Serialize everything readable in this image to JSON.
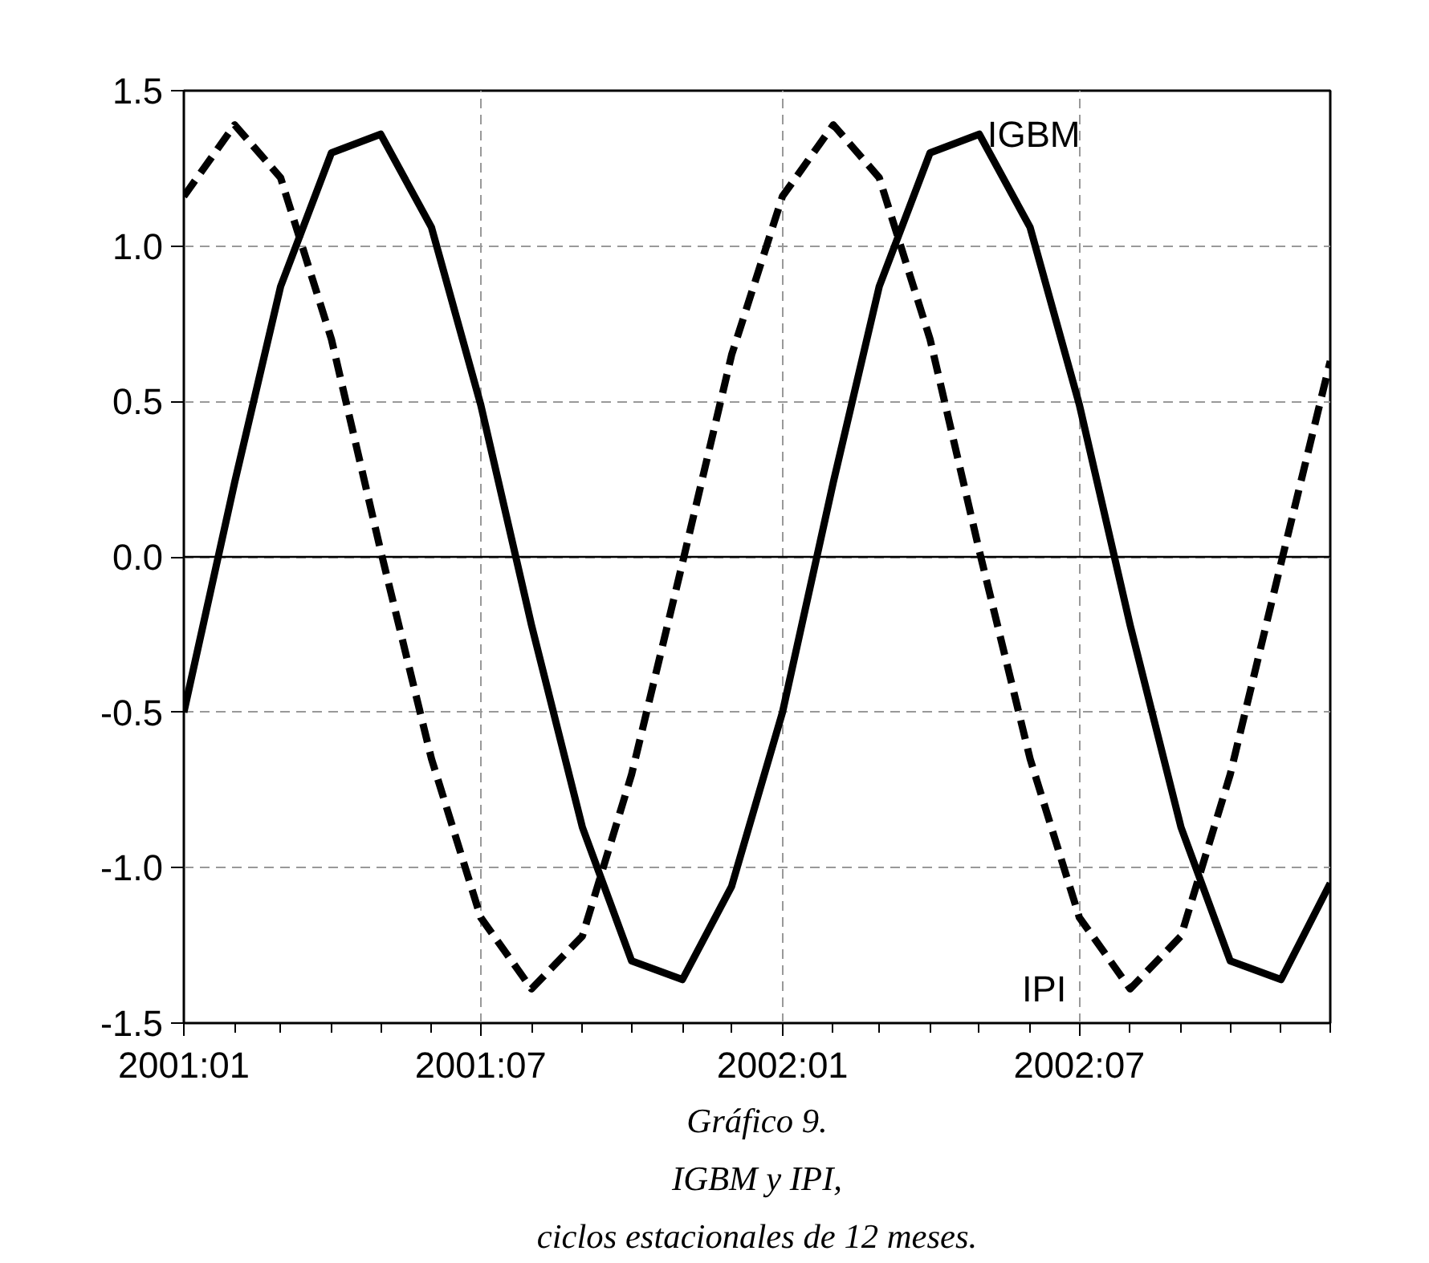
{
  "chart_data": {
    "type": "line",
    "x": [
      "2001-01",
      "2001-02",
      "2001-03",
      "2001-04",
      "2001-05",
      "2001-06",
      "2001-07",
      "2001-08",
      "2001-09",
      "2001-10",
      "2001-11",
      "2001-12",
      "2002-01",
      "2002-02",
      "2002-03",
      "2002-04",
      "2002-05",
      "2002-06",
      "2002-07",
      "2002-08",
      "2002-09",
      "2002-10",
      "2002-11",
      "2002-12"
    ],
    "series": [
      {
        "name": "IGBM",
        "color": "#000000",
        "line_style": "solid",
        "values": [
          -0.5,
          0.24,
          0.87,
          1.3,
          1.36,
          1.06,
          0.49,
          -0.22,
          -0.87,
          -1.3,
          -1.36,
          -1.06,
          -0.5,
          0.24,
          0.87,
          1.3,
          1.36,
          1.06,
          0.49,
          -0.22,
          -0.87,
          -1.3,
          -1.36,
          -1.05
        ]
      },
      {
        "name": "IPI",
        "color": "#000000",
        "line_style": "dashed",
        "values": [
          1.16,
          1.39,
          1.22,
          0.7,
          0.02,
          -0.65,
          -1.16,
          -1.39,
          -1.22,
          -0.7,
          -0.02,
          0.65,
          1.16,
          1.39,
          1.22,
          0.7,
          0.02,
          -0.65,
          -1.16,
          -1.39,
          -1.22,
          -0.7,
          -0.02,
          0.63
        ]
      }
    ],
    "xlim": [
      "2001-01",
      "2002-12"
    ],
    "xticks": [
      {
        "value": "2001-01",
        "label": "2001:01"
      },
      {
        "value": "2001-07",
        "label": "2001:07"
      },
      {
        "value": "2002-01",
        "label": "2002:01"
      },
      {
        "value": "2002-07",
        "label": "2002:07"
      }
    ],
    "ylim": [
      -1.5,
      1.5
    ],
    "yticks": [
      {
        "value": -1.5,
        "label": "-1.5"
      },
      {
        "value": -1.0,
        "label": "-1.0"
      },
      {
        "value": -0.5,
        "label": "-0.5"
      },
      {
        "value": 0.0,
        "label": "0.0"
      },
      {
        "value": 0.5,
        "label": "0.5"
      },
      {
        "value": 1.0,
        "label": "1.0"
      },
      {
        "value": 1.5,
        "label": "1.5"
      }
    ],
    "ref_lines": [
      {
        "axis": "y",
        "value": 0,
        "color": "#000000",
        "line_style": "solid"
      }
    ],
    "grid": true,
    "annotations": [
      "Gráfico 9.",
      "IGBM y IPI,",
      "ciclos estacionales de 12 meses."
    ]
  }
}
